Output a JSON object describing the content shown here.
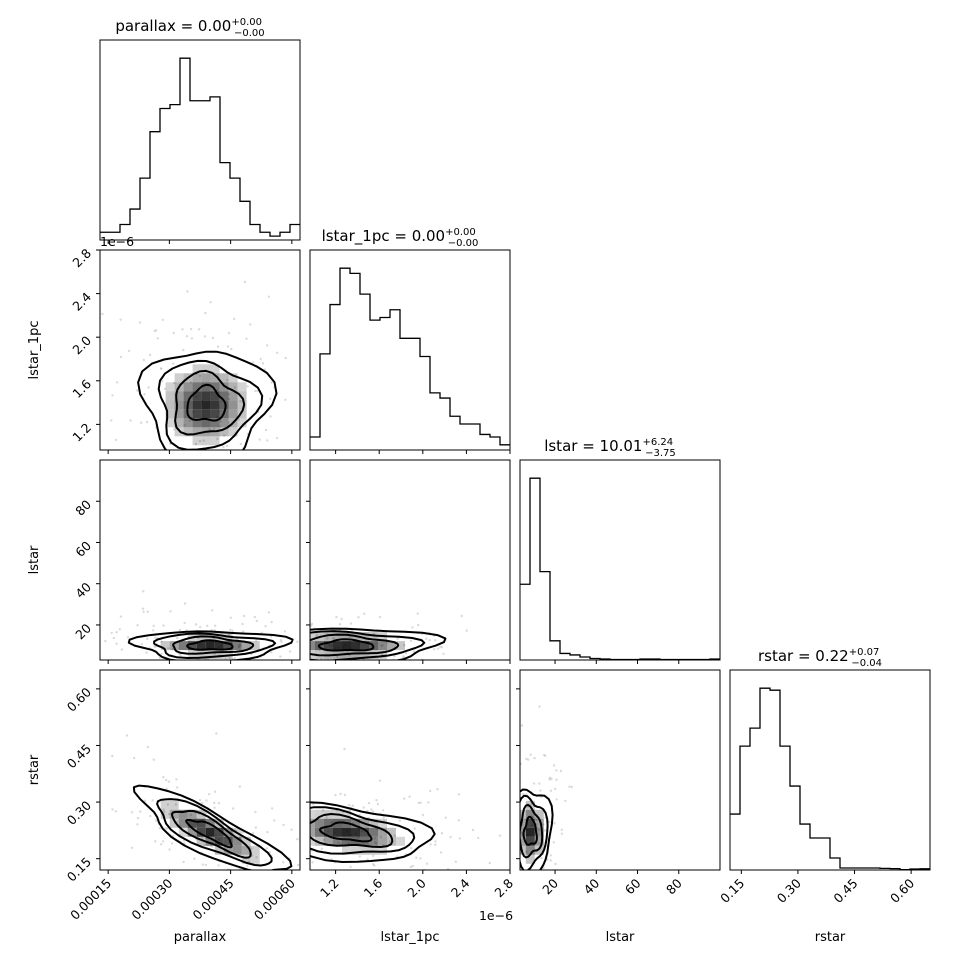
{
  "chart_data": {
    "type": "corner",
    "parameters": [
      {
        "name": "parallax",
        "title": "parallax = 0.00",
        "title_sup": "+0.00",
        "title_sub": "−0.00",
        "axis_label": "parallax",
        "range": [
          0.00013,
          0.00062
        ],
        "ticks": [
          0.00015,
          0.0003,
          0.00045,
          0.0006
        ],
        "tick_labels": [
          "0.00015",
          "0.00030",
          "0.00045",
          "0.00060"
        ],
        "offset_label": "",
        "hist_values": [
          1,
          1,
          2,
          4,
          8,
          14,
          17,
          17.5,
          23.5,
          18,
          18,
          18.5,
          10,
          8,
          5,
          2,
          1,
          0.5,
          1,
          2
        ]
      },
      {
        "name": "lstar_1pc",
        "title": "lstar_1pc = 0.00",
        "title_sup": "+0.00",
        "title_sub": "−0.00",
        "axis_label": "lstar_1pc",
        "range": [
          9.65e-07,
          2.8e-06
        ],
        "ticks": [
          1.2e-06,
          1.6e-06,
          2e-06,
          2.4e-06,
          2.8e-06
        ],
        "tick_labels": [
          "1.2",
          "1.6",
          "2.0",
          "2.4",
          "2.8"
        ],
        "offset_label": "1e−6",
        "hist_values": [
          0.5,
          3.7,
          5.6,
          7.0,
          6.8,
          6.0,
          5.0,
          5.1,
          5.4,
          4.3,
          4.3,
          3.6,
          2.2,
          2.0,
          1.3,
          1.0,
          1.0,
          0.6,
          0.5,
          0.2
        ]
      },
      {
        "name": "lstar",
        "title": "lstar = 10.01",
        "title_sup": "+6.24",
        "title_sub": "−3.75",
        "axis_label": "lstar",
        "range": [
          3,
          100
        ],
        "ticks": [
          20,
          40,
          60,
          80
        ],
        "tick_labels": [
          "20",
          "40",
          "60",
          "80"
        ],
        "offset_label": "",
        "hist_values": [
          15,
          36,
          17.5,
          3.8,
          1.3,
          1,
          0.6,
          0.3,
          0.2,
          0.1,
          0.1,
          0.1,
          0.2,
          0.2,
          0.1,
          0.1,
          0.1,
          0.1,
          0.1,
          0.2
        ]
      },
      {
        "name": "rstar",
        "title": "rstar = 0.22",
        "title_sup": "+0.07",
        "title_sub": "−0.04",
        "axis_label": "rstar",
        "range": [
          0.12,
          0.65
        ],
        "ticks": [
          0.15,
          0.3,
          0.45,
          0.6
        ],
        "tick_labels": [
          "0.15",
          "0.30",
          "0.45",
          "0.60"
        ],
        "offset_label": "",
        "hist_values": [
          28,
          62,
          71,
          91,
          90,
          62,
          42,
          23,
          16,
          16,
          6,
          1,
          1,
          1,
          1,
          0.8,
          0.7,
          0.2,
          0.5,
          0.6
        ]
      }
    ],
    "pairs": [
      {
        "x": "parallax",
        "y": "lstar_1pc",
        "center": [
          0.00039,
          1.38e-06
        ]
      },
      {
        "x": "parallax",
        "y": "lstar",
        "center": [
          0.0004,
          10
        ]
      },
      {
        "x": "lstar_1pc",
        "y": "lstar",
        "center": [
          1.3e-06,
          10
        ]
      },
      {
        "x": "parallax",
        "y": "rstar",
        "center": [
          0.0004,
          0.22
        ]
      },
      {
        "x": "lstar_1pc",
        "y": "rstar",
        "center": [
          1.3e-06,
          0.22
        ]
      },
      {
        "x": "lstar",
        "y": "rstar",
        "center": [
          8,
          0.22
        ]
      }
    ],
    "colors": {
      "line": "#000000",
      "density": "#000000",
      "points": "#bbbbbb"
    }
  }
}
